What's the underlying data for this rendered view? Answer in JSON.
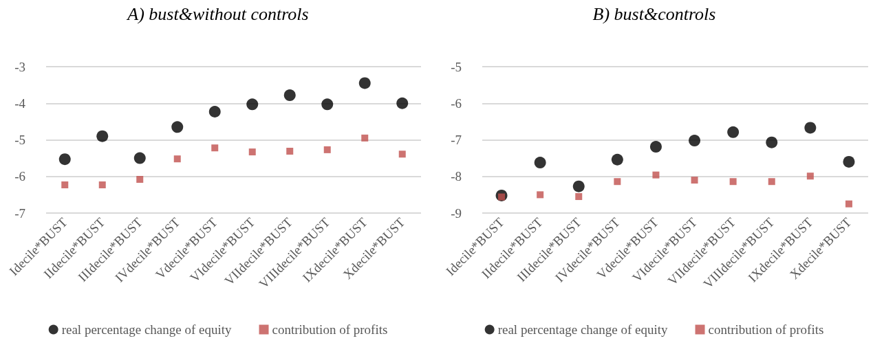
{
  "chart_data": [
    {
      "type": "scatter",
      "title": "A) bust&without controls",
      "categories": [
        "Idecile*BUST",
        "IIdecile*BUST",
        "IIIdecile*BUST",
        "IVdecile*BUST",
        "Vdecile*BUST",
        "VIdecile*BUST",
        "VIIdecile*BUST",
        "VIIIdecile*BUST",
        "IXdecile*BUST",
        "Xdecile*BUST"
      ],
      "series": [
        {
          "name": "real percentage change of equity",
          "color": "#000000",
          "marker": "circle",
          "values": [
            -5.53,
            -4.9,
            -5.5,
            -4.65,
            -4.23,
            -4.03,
            -3.78,
            -4.03,
            -3.45,
            -4.0
          ]
        },
        {
          "name": "contribution of profits",
          "color": "#c0504d",
          "marker": "square",
          "values": [
            -6.23,
            -6.23,
            -6.08,
            -5.52,
            -5.22,
            -5.33,
            -5.31,
            -5.27,
            -4.95,
            -5.39
          ]
        }
      ],
      "ylim": [
        -7,
        -3
      ],
      "yticks": [
        -7,
        -6,
        -5,
        -4,
        -3
      ],
      "grid": "y",
      "legend": "bottom"
    },
    {
      "type": "scatter",
      "title": "B) bust&controls",
      "categories": [
        "Idecile*BUST",
        "IIdecile*BUST",
        "IIIdecile*BUST",
        "IVdecile*BUST",
        "Vdecile*BUST",
        "VIdecile*BUST",
        "VIIdecile*BUST",
        "VIIIdecile*BUST",
        "IXdecile*BUST",
        "Xdecile*BUST"
      ],
      "series": [
        {
          "name": "real percentage change of equity",
          "color": "#000000",
          "marker": "circle",
          "values": [
            -8.52,
            -7.62,
            -8.27,
            -7.54,
            -7.19,
            -7.02,
            -6.79,
            -7.07,
            -6.67,
            -7.6
          ]
        },
        {
          "name": "contribution of profits",
          "color": "#c0504d",
          "marker": "square",
          "values": [
            -8.56,
            -8.5,
            -8.55,
            -8.14,
            -7.96,
            -8.1,
            -8.14,
            -8.14,
            -7.99,
            -8.75
          ]
        }
      ],
      "ylim": [
        -9,
        -5
      ],
      "yticks": [
        -9,
        -8,
        -7,
        -6,
        -5
      ],
      "grid": "y",
      "legend": "bottom"
    }
  ]
}
